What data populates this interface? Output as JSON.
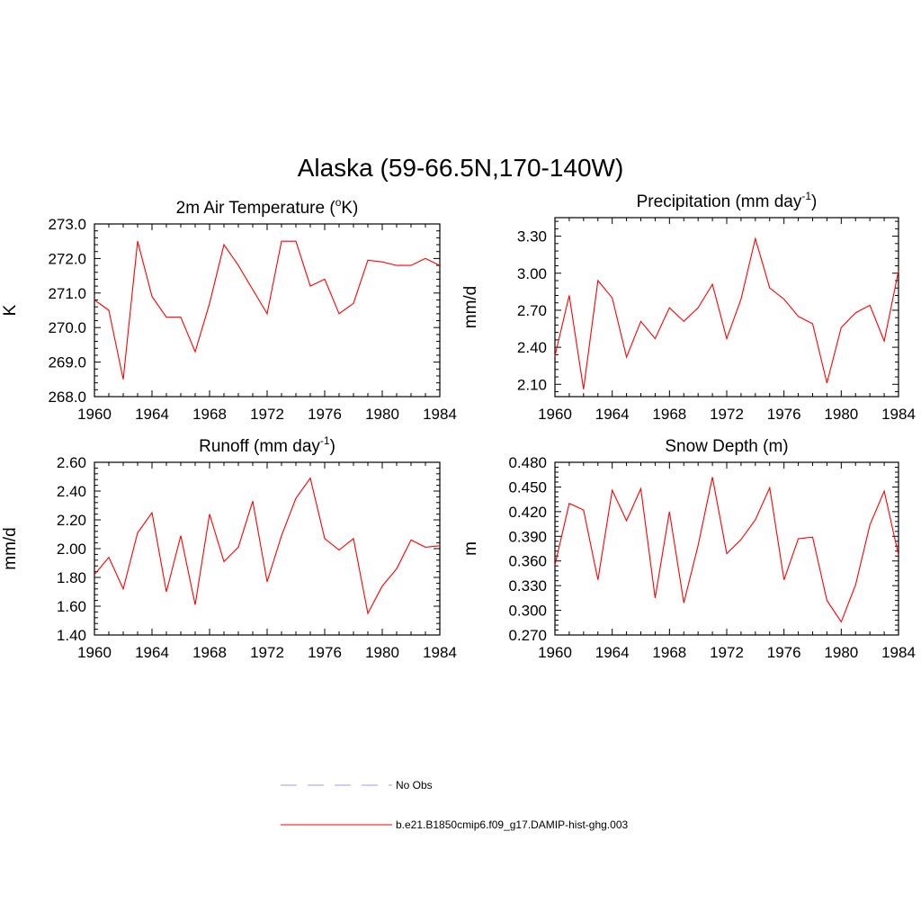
{
  "figure": {
    "title": "Alaska (59-66.5N,170-140W)"
  },
  "chart_data": [
    {
      "type": "line",
      "title": "2m Air Temperature (",
      "title_sup": "o",
      "title_suffix": "K)",
      "ylabel": "K",
      "xlim": [
        1960,
        1984
      ],
      "ylim": [
        268.0,
        273.0
      ],
      "xticks": [
        "1960",
        "1964",
        "1968",
        "1972",
        "1976",
        "1980",
        "1984"
      ],
      "yticks": [
        "268.0",
        "269.0",
        "270.0",
        "271.0",
        "272.0",
        "273.0"
      ],
      "series": [
        {
          "name": "b.e21.B1850cmip6.f09_g17.DAMIP-hist-ghg.003",
          "x": [
            1960,
            1961,
            1962,
            1963,
            1964,
            1965,
            1966,
            1967,
            1968,
            1969,
            1970,
            1971,
            1972,
            1973,
            1974,
            1975,
            1976,
            1977,
            1978,
            1979,
            1980,
            1981,
            1982,
            1983,
            1984
          ],
          "values": [
            270.8,
            270.5,
            268.5,
            272.5,
            270.9,
            270.3,
            270.3,
            269.3,
            270.7,
            272.4,
            271.8,
            271.1,
            270.4,
            272.5,
            272.5,
            271.2,
            271.4,
            270.4,
            270.7,
            271.95,
            271.9,
            271.8,
            271.8,
            272.0,
            271.8
          ]
        }
      ]
    },
    {
      "type": "line",
      "title": "Precipitation (mm day",
      "title_sup": "-1",
      "title_suffix": ")",
      "ylabel": "mm/d",
      "xlim": [
        1960,
        1984
      ],
      "ylim": [
        2.0,
        3.45
      ],
      "xticks": [
        "1960",
        "1964",
        "1968",
        "1972",
        "1976",
        "1980",
        "1984"
      ],
      "yticks": [
        "2.10",
        "2.40",
        "2.70",
        "3.00",
        "3.30"
      ],
      "series": [
        {
          "name": "b.e21.B1850cmip6.f09_g17.DAMIP-hist-ghg.003",
          "x": [
            1960,
            1961,
            1962,
            1963,
            1964,
            1965,
            1966,
            1967,
            1968,
            1969,
            1970,
            1971,
            1972,
            1973,
            1974,
            1975,
            1976,
            1977,
            1978,
            1979,
            1980,
            1981,
            1982,
            1983,
            1984
          ],
          "values": [
            2.33,
            2.82,
            2.06,
            2.94,
            2.8,
            2.32,
            2.61,
            2.47,
            2.72,
            2.61,
            2.72,
            2.91,
            2.47,
            2.79,
            3.28,
            2.88,
            2.79,
            2.65,
            2.59,
            2.11,
            2.56,
            2.68,
            2.74,
            2.45,
            3.02
          ]
        }
      ]
    },
    {
      "type": "line",
      "title": "Runoff (mm day",
      "title_sup": "-1",
      "title_suffix": ")",
      "ylabel": "mm/d",
      "xlim": [
        1960,
        1984
      ],
      "ylim": [
        1.4,
        2.6
      ],
      "xticks": [
        "1960",
        "1964",
        "1968",
        "1972",
        "1976",
        "1980",
        "1984"
      ],
      "yticks": [
        "1.40",
        "1.60",
        "1.80",
        "2.00",
        "2.20",
        "2.40",
        "2.60"
      ],
      "series": [
        {
          "name": "b.e21.B1850cmip6.f09_g17.DAMIP-hist-ghg.003",
          "x": [
            1960,
            1961,
            1962,
            1963,
            1964,
            1965,
            1966,
            1967,
            1968,
            1969,
            1970,
            1971,
            1972,
            1973,
            1974,
            1975,
            1976,
            1977,
            1978,
            1979,
            1980,
            1981,
            1982,
            1983,
            1984
          ],
          "values": [
            1.82,
            1.94,
            1.72,
            2.11,
            2.25,
            1.7,
            2.09,
            1.61,
            2.24,
            1.91,
            2.01,
            2.33,
            1.77,
            2.09,
            2.35,
            2.49,
            2.07,
            1.99,
            2.07,
            1.55,
            1.74,
            1.86,
            2.06,
            2.01,
            2.02
          ]
        }
      ]
    },
    {
      "type": "line",
      "title": "Snow Depth (m)",
      "title_sup": "",
      "title_suffix": "",
      "ylabel": "m",
      "xlim": [
        1960,
        1984
      ],
      "ylim": [
        0.27,
        0.48
      ],
      "xticks": [
        "1960",
        "1964",
        "1968",
        "1972",
        "1976",
        "1980",
        "1984"
      ],
      "yticks": [
        "0.270",
        "0.300",
        "0.330",
        "0.360",
        "0.390",
        "0.420",
        "0.450",
        "0.480"
      ],
      "series": [
        {
          "name": "b.e21.B1850cmip6.f09_g17.DAMIP-hist-ghg.003",
          "x": [
            1960,
            1961,
            1962,
            1963,
            1964,
            1965,
            1966,
            1967,
            1968,
            1969,
            1970,
            1971,
            1972,
            1973,
            1974,
            1975,
            1976,
            1977,
            1978,
            1979,
            1980,
            1981,
            1982,
            1983,
            1984
          ],
          "values": [
            0.355,
            0.43,
            0.422,
            0.337,
            0.446,
            0.409,
            0.448,
            0.315,
            0.42,
            0.309,
            0.379,
            0.462,
            0.369,
            0.386,
            0.41,
            0.449,
            0.337,
            0.387,
            0.389,
            0.312,
            0.286,
            0.331,
            0.404,
            0.445,
            0.367
          ]
        }
      ]
    }
  ],
  "legend": {
    "items": [
      {
        "label": "No Obs",
        "color": "#9999ff",
        "style": "dashed"
      },
      {
        "label": "b.e21.B1850cmip6.f09_g17.DAMIP-hist-ghg.003",
        "color": "#ff0000",
        "style": "solid"
      }
    ]
  },
  "colors": {
    "series_line": "#ff0000",
    "obs_line": "#9999ff",
    "axes": "#000000"
  }
}
